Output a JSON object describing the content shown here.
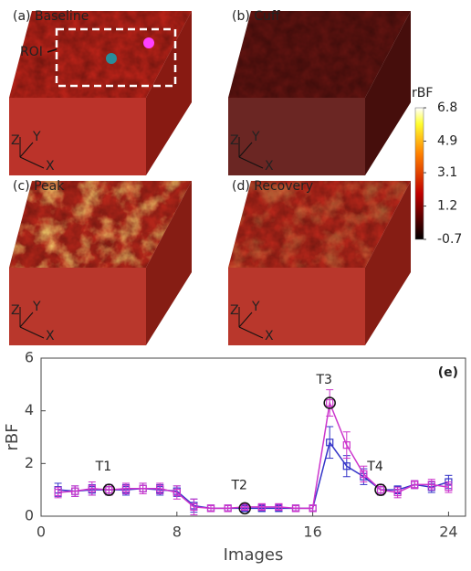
{
  "panels": [
    {
      "label": "(a) Baseline",
      "roi": "ROI",
      "axes": [
        "Z",
        "Y",
        "X"
      ],
      "color": "#b52218",
      "hot": 0
    },
    {
      "label": "(b) Cuff",
      "axes": [
        "Z",
        "Y",
        "X"
      ],
      "color": "#5e1310",
      "hot": 0
    },
    {
      "label": "(c) Peak",
      "axes": [
        "Z",
        "Y",
        "X"
      ],
      "color": "#b3261a",
      "hot": 1
    },
    {
      "label": "(d) Recovery",
      "axes": [
        "Z",
        "Y",
        "X"
      ],
      "color": "#b3261a",
      "hot": 0.4
    }
  ],
  "colorbar": {
    "label": "rBF",
    "lim": [
      -0.7,
      6.8
    ],
    "ticks": [
      6.8,
      4.9,
      3.1,
      1.2,
      -0.7
    ]
  },
  "chart_data": {
    "type": "line",
    "label": "(e)",
    "x_label": "Images",
    "y_label": "rBF",
    "x": [
      1,
      2,
      3,
      4,
      5,
      6,
      7,
      8,
      9,
      10,
      11,
      12,
      13,
      14,
      15,
      16,
      17,
      18,
      19,
      20,
      21,
      22,
      23,
      24
    ],
    "series": [
      {
        "color": "#3535c8",
        "values": [
          1.0,
          0.95,
          1.0,
          1.0,
          1.0,
          1.05,
          1.0,
          0.95,
          0.4,
          0.3,
          0.3,
          0.3,
          0.3,
          0.3,
          0.3,
          0.3,
          2.8,
          1.9,
          1.5,
          1.0,
          1.0,
          1.2,
          1.1,
          1.3
        ],
        "errors": [
          0.25,
          0.2,
          0.2,
          0.2,
          0.2,
          0.2,
          0.2,
          0.2,
          0.25,
          0.1,
          0.1,
          0.1,
          0.1,
          0.1,
          0.1,
          0.1,
          0.6,
          0.4,
          0.3,
          0.2,
          0.15,
          0.15,
          0.2,
          0.25
        ]
      },
      {
        "color": "#cc35cc",
        "values": [
          0.9,
          0.95,
          1.05,
          1.0,
          1.05,
          1.05,
          1.05,
          0.9,
          0.35,
          0.3,
          0.3,
          0.35,
          0.35,
          0.35,
          0.3,
          0.3,
          4.3,
          2.7,
          1.6,
          1.0,
          0.9,
          1.2,
          1.2,
          1.1
        ],
        "errors": [
          0.2,
          0.2,
          0.25,
          0.2,
          0.2,
          0.2,
          0.2,
          0.25,
          0.3,
          0.1,
          0.1,
          0.1,
          0.1,
          0.1,
          0.1,
          0.1,
          0.5,
          0.5,
          0.3,
          0.2,
          0.2,
          0.15,
          0.2,
          0.2
        ]
      }
    ],
    "annotations": [
      {
        "text": "T1",
        "x": 4,
        "y": 1.0
      },
      {
        "text": "T2",
        "x": 12,
        "y": 0.3
      },
      {
        "text": "T3",
        "x": 17,
        "y": 4.3
      },
      {
        "text": "T4",
        "x": 20,
        "y": 1.0
      }
    ],
    "xlim": [
      0,
      25
    ],
    "ylim": [
      0,
      6
    ],
    "xticks": [
      0,
      8,
      16,
      24
    ],
    "yticks": [
      0,
      2,
      4,
      6
    ]
  }
}
